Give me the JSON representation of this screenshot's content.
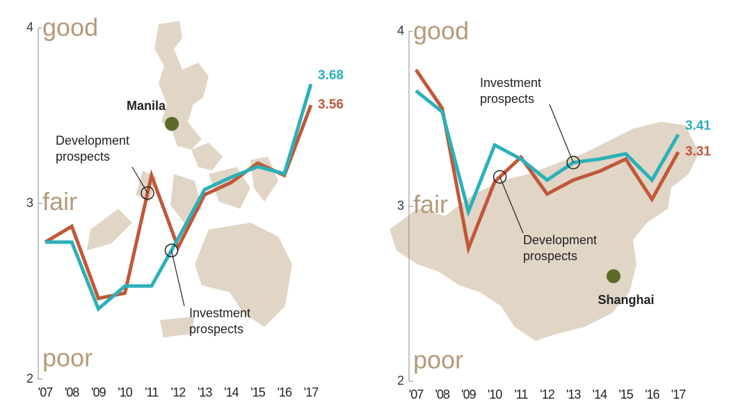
{
  "chart_data": [
    {
      "type": "line",
      "x": [
        "'07",
        "'08",
        "'09",
        "'10",
        "'11",
        "'12",
        "'13",
        "'14",
        "'15",
        "'16",
        "'17"
      ],
      "series": [
        {
          "name": "Development prospects",
          "color": "#c0583a",
          "values": [
            2.78,
            2.87,
            2.46,
            2.49,
            3.16,
            2.75,
            3.05,
            3.12,
            3.23,
            3.16,
            3.56
          ]
        },
        {
          "name": "Investment prospects",
          "color": "#2bb0b9",
          "values": [
            2.78,
            2.78,
            2.4,
            2.53,
            2.53,
            2.8,
            3.08,
            3.15,
            3.21,
            3.17,
            3.68
          ]
        }
      ],
      "ylim": [
        2,
        4
      ],
      "yticks": [
        2,
        3,
        4
      ],
      "scale_labels": [
        "poor",
        "fair",
        "good"
      ],
      "location": "Manila"
    },
    {
      "type": "line",
      "x": [
        "'07",
        "'08",
        "'09",
        "'10",
        "'11",
        "'12",
        "'13",
        "'14",
        "'15",
        "'16",
        "'17"
      ],
      "series": [
        {
          "name": "Development prospects",
          "color": "#c0583a",
          "values": [
            3.78,
            3.56,
            2.76,
            3.14,
            3.28,
            3.07,
            3.15,
            3.2,
            3.27,
            3.04,
            3.31
          ]
        },
        {
          "name": "Investment prospects",
          "color": "#2bb0b9",
          "values": [
            3.66,
            3.54,
            2.97,
            3.35,
            3.27,
            3.15,
            3.25,
            3.27,
            3.3,
            3.15,
            3.41
          ]
        }
      ],
      "ylim": [
        2,
        4
      ],
      "yticks": [
        2,
        3,
        4
      ],
      "scale_labels": [
        "poor",
        "fair",
        "good"
      ],
      "location": "Shanghai"
    }
  ]
}
